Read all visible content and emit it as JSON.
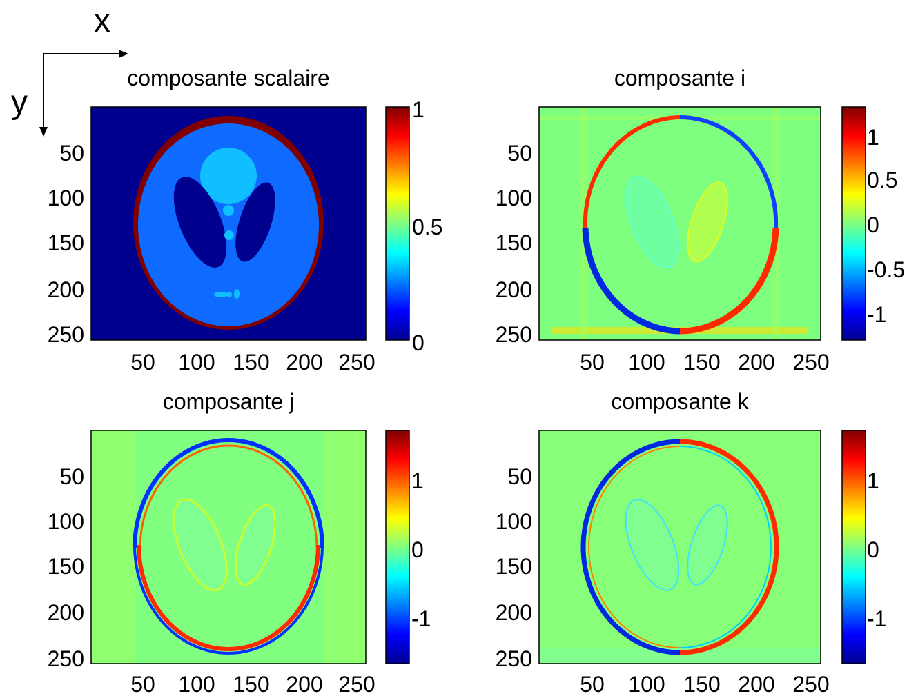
{
  "axes_indicator": {
    "x_label": "x",
    "y_label": "y"
  },
  "colors": {
    "background_dark_blue": "#00008f",
    "scalar_body": "#0f6bff",
    "scalar_bright": "#10bfff",
    "scalar_dark": "#00008f",
    "rim_dark_red": "#800000",
    "neutral_field": "#7fff80",
    "edge_red": "#ff2a00",
    "edge_blue": "#0030ff"
  },
  "chart_data": [
    {
      "type": "heatmap",
      "id": "scalar",
      "title": "composante scalaire",
      "xticks": [
        "50",
        "100",
        "150",
        "200",
        "250"
      ],
      "yticks": [
        "50",
        "100",
        "150",
        "200",
        "250"
      ],
      "colorbar": {
        "min": 0,
        "max": 1,
        "ticks": [
          "0",
          "0.5",
          "1"
        ],
        "tick_values": [
          0,
          0.5,
          1
        ]
      },
      "colormap": "jet"
    },
    {
      "type": "heatmap",
      "id": "i",
      "title": "composante i",
      "xticks": [
        "50",
        "100",
        "150",
        "200",
        "250"
      ],
      "yticks": [
        "50",
        "100",
        "150",
        "200",
        "250"
      ],
      "colorbar": {
        "min": -1.3,
        "max": 1.3,
        "ticks": [
          "-1",
          "-0.5",
          "0",
          "0.5",
          "1"
        ],
        "tick_values": [
          -1,
          -0.5,
          0,
          0.5,
          1
        ]
      },
      "colormap": "jet"
    },
    {
      "type": "heatmap",
      "id": "j",
      "title": "composante j",
      "xticks": [
        "50",
        "100",
        "150",
        "200",
        "250"
      ],
      "yticks": [
        "50",
        "100",
        "150",
        "200",
        "250"
      ],
      "colorbar": {
        "min": -1.7,
        "max": 1.7,
        "ticks": [
          "-1",
          "0",
          "1"
        ],
        "tick_values": [
          -1,
          0,
          1
        ]
      },
      "colormap": "jet"
    },
    {
      "type": "heatmap",
      "id": "k",
      "title": "composante k",
      "xticks": [
        "50",
        "100",
        "150",
        "200",
        "250"
      ],
      "yticks": [
        "50",
        "100",
        "150",
        "200",
        "250"
      ],
      "colorbar": {
        "min": -1.7,
        "max": 1.7,
        "ticks": [
          "-1",
          "0",
          "1"
        ],
        "tick_values": [
          -1,
          0,
          1
        ]
      },
      "colormap": "jet"
    }
  ]
}
